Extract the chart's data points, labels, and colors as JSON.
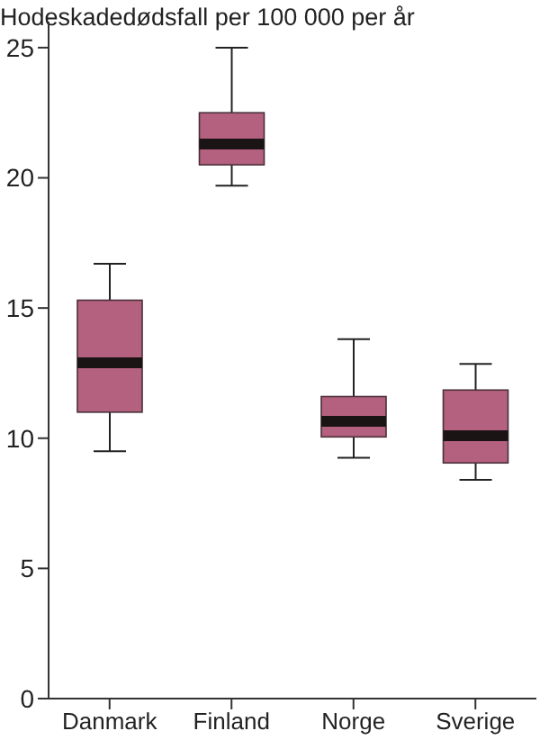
{
  "chart_data": {
    "type": "box",
    "title": "Hodeskadedødsfall per 100 000 per år",
    "categories": [
      "Danmark",
      "Finland",
      "Norge",
      "Sverige"
    ],
    "color": "#b4607f",
    "ylim": [
      0,
      26
    ],
    "yticks": [
      0,
      5,
      10,
      15,
      20,
      25
    ],
    "grid": false,
    "boxes": [
      {
        "low": 9.5,
        "q1": 11.0,
        "median": 12.9,
        "q3": 15.3,
        "high": 16.7
      },
      {
        "low": 19.7,
        "q1": 20.5,
        "median": 21.3,
        "q3": 22.5,
        "high": 25
      },
      {
        "low": 9.25,
        "q1": 10.05,
        "median": 10.65,
        "q3": 11.6,
        "high": 13.8
      },
      {
        "low": 8.4,
        "q1": 9.05,
        "median": 10.1,
        "q3": 11.85,
        "high": 12.85
      }
    ]
  }
}
